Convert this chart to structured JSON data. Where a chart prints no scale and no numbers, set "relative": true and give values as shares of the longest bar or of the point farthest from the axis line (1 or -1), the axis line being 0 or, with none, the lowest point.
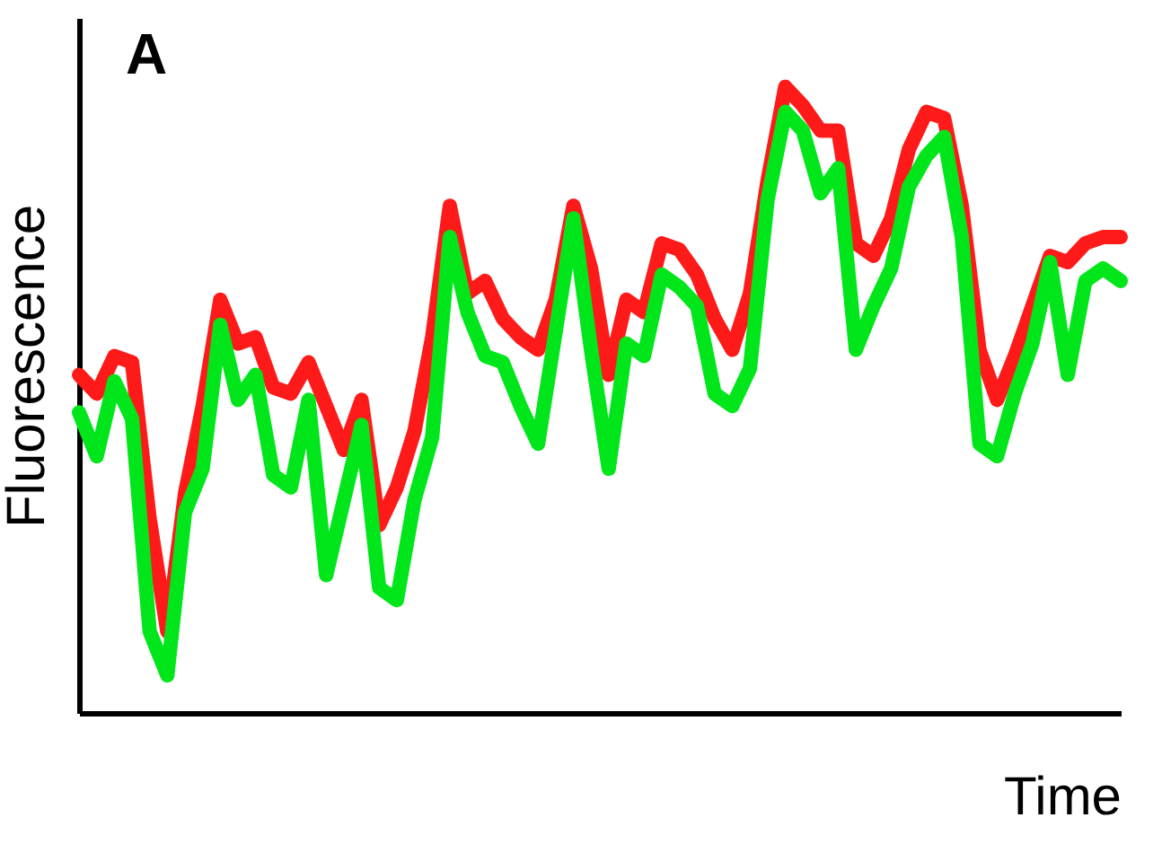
{
  "chart_data": {
    "type": "line",
    "title": "A",
    "xlabel": "Time",
    "ylabel": "Fluorescence",
    "relative": true,
    "tick_labels": false,
    "categories": [
      null,
      null,
      null,
      null,
      null,
      null,
      null,
      null,
      null,
      null,
      null,
      null,
      null,
      null,
      null,
      null,
      null,
      null,
      null,
      null,
      null,
      null,
      null,
      null,
      null,
      null,
      null,
      null,
      null,
      null,
      null,
      null,
      null,
      null,
      null,
      null,
      null,
      null,
      null,
      null,
      null,
      null,
      null,
      null,
      null,
      null,
      null,
      null,
      null,
      null,
      null,
      null,
      null,
      null,
      null,
      null,
      null,
      null,
      null,
      null
    ],
    "series": [
      {
        "color": "#ff1a1a",
        "values": [
          0.54,
          0.51,
          0.57,
          0.56,
          0.31,
          0.13,
          0.35,
          0.49,
          0.66,
          0.59,
          0.6,
          0.52,
          0.51,
          0.56,
          0.49,
          0.42,
          0.5,
          0.3,
          0.36,
          0.45,
          0.6,
          0.81,
          0.67,
          0.69,
          0.63,
          0.6,
          0.58,
          0.66,
          0.81,
          0.71,
          0.54,
          0.66,
          0.64,
          0.75,
          0.74,
          0.7,
          0.63,
          0.58,
          0.67,
          0.85,
          1.0,
          0.97,
          0.93,
          0.93,
          0.75,
          0.73,
          0.79,
          0.9,
          0.96,
          0.95,
          0.81,
          0.58,
          0.5,
          0.57,
          0.65,
          0.73,
          0.72,
          0.75,
          0.76,
          0.76
        ]
      },
      {
        "color": "#00e61a",
        "values": [
          0.48,
          0.41,
          0.53,
          0.47,
          0.13,
          0.06,
          0.32,
          0.39,
          0.62,
          0.5,
          0.54,
          0.38,
          0.36,
          0.5,
          0.22,
          0.34,
          0.46,
          0.2,
          0.18,
          0.34,
          0.44,
          0.76,
          0.64,
          0.57,
          0.56,
          0.49,
          0.43,
          0.61,
          0.79,
          0.58,
          0.39,
          0.59,
          0.57,
          0.7,
          0.68,
          0.65,
          0.51,
          0.49,
          0.55,
          0.82,
          0.96,
          0.93,
          0.83,
          0.87,
          0.58,
          0.65,
          0.71,
          0.84,
          0.89,
          0.92,
          0.76,
          0.43,
          0.41,
          0.51,
          0.59,
          0.72,
          0.54,
          0.69,
          0.71,
          0.69
        ]
      }
    ]
  }
}
